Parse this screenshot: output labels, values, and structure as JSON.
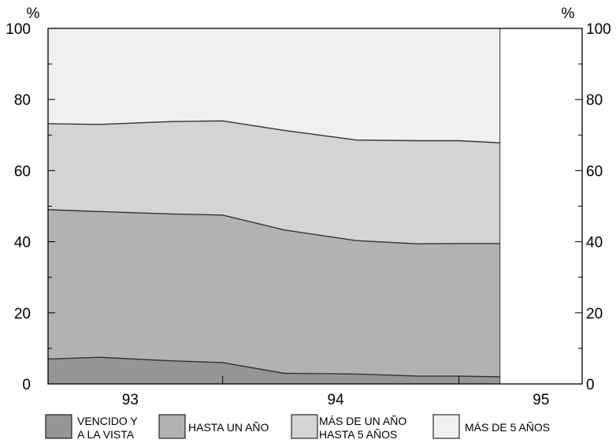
{
  "chart_data": {
    "type": "area",
    "stacked": true,
    "y_unit_left": "%",
    "y_unit_right": "%",
    "ylim": [
      0,
      100
    ],
    "y_ticks": [
      0,
      20,
      40,
      60,
      80,
      100
    ],
    "grid": false,
    "legend_position": "bottom",
    "x_domain": [
      92.6,
      95.2
    ],
    "x_plot_range": [
      92.6,
      94.8
    ],
    "x": [
      92.6,
      92.85,
      93.2,
      93.45,
      93.75,
      94.1,
      94.4,
      94.6,
      94.8
    ],
    "x_tick_labels": [
      {
        "label": "93",
        "x": 93.0
      },
      {
        "label": "94",
        "x": 94.0
      },
      {
        "label": "95",
        "x": 95.0
      }
    ],
    "x_ticks": [
      93.45,
      94.6
    ],
    "series": [
      {
        "name": "VENCIDO Y A LA VISTA",
        "legend_lines": [
          "VENCIDO Y",
          "A LA VISTA"
        ],
        "color": "#959595",
        "values": [
          7.0,
          7.5,
          6.5,
          6.0,
          3.0,
          2.8,
          2.2,
          2.2,
          2.0
        ]
      },
      {
        "name": "HASTA UN AÑO",
        "legend_lines": [
          "HASTA UN AÑO"
        ],
        "color": "#b2b2b2",
        "values": [
          42.0,
          41.0,
          41.3,
          41.5,
          40.3,
          37.5,
          37.2,
          37.3,
          37.5
        ]
      },
      {
        "name": "MÁS DE UN AÑO HASTA 5 AÑOS",
        "legend_lines": [
          "MÁS DE UN AÑO",
          "HASTA 5 AÑOS"
        ],
        "color": "#d4d4d4",
        "values": [
          24.2,
          24.5,
          26.0,
          26.5,
          28.0,
          28.3,
          29.0,
          28.9,
          28.3
        ]
      },
      {
        "name": "MÁS DE 5 AÑOS",
        "legend_lines": [
          "MÁS DE 5 AÑOS"
        ],
        "color": "#f0f0f0",
        "values": [
          26.8,
          27.0,
          26.2,
          26.0,
          28.7,
          31.4,
          31.6,
          31.6,
          32.2
        ]
      }
    ]
  }
}
